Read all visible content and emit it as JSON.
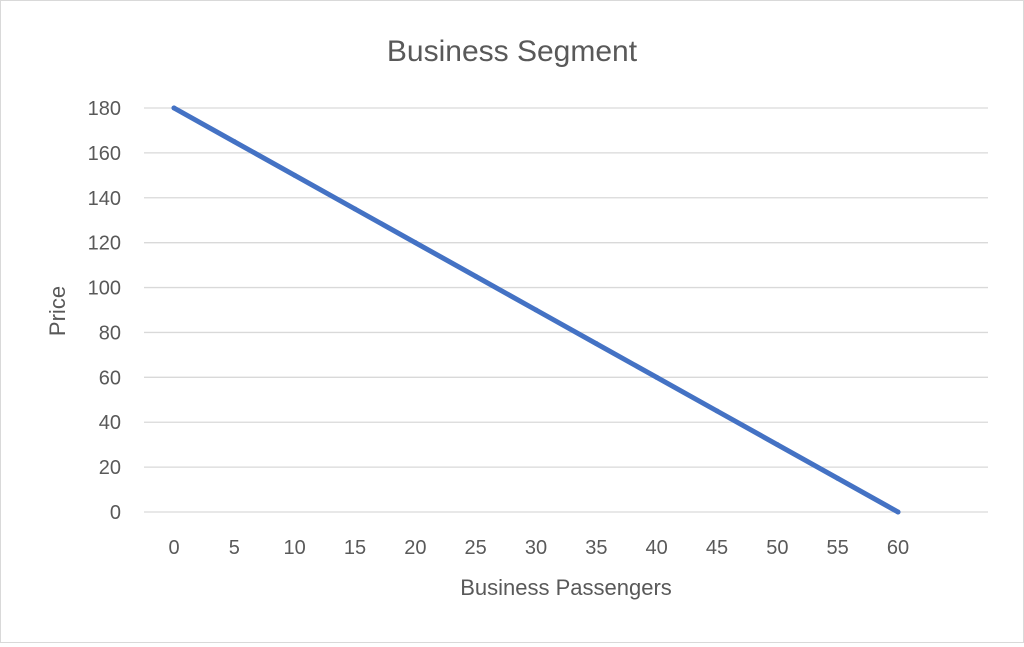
{
  "chart_data": {
    "type": "line",
    "title": "Business Segment",
    "xlabel": "Business Passengers",
    "ylabel": "Price",
    "x": [
      0,
      5,
      10,
      15,
      20,
      25,
      30,
      35,
      40,
      45,
      50,
      55,
      60
    ],
    "series": [
      {
        "values": [
          180,
          165,
          150,
          135,
          120,
          105,
          90,
          75,
          60,
          45,
          30,
          15,
          0
        ]
      }
    ],
    "x_ticks": [
      0,
      5,
      10,
      15,
      20,
      25,
      30,
      35,
      40,
      45,
      50,
      55,
      60
    ],
    "y_ticks": [
      0,
      20,
      40,
      60,
      80,
      100,
      120,
      140,
      160,
      180
    ],
    "xlim": [
      0,
      60
    ],
    "ylim": [
      0,
      180
    ],
    "grid": "horizontal",
    "legend": "none",
    "colors": {
      "line": "#4472c4",
      "grid": "#d9d9d9",
      "text": "#595959"
    }
  }
}
